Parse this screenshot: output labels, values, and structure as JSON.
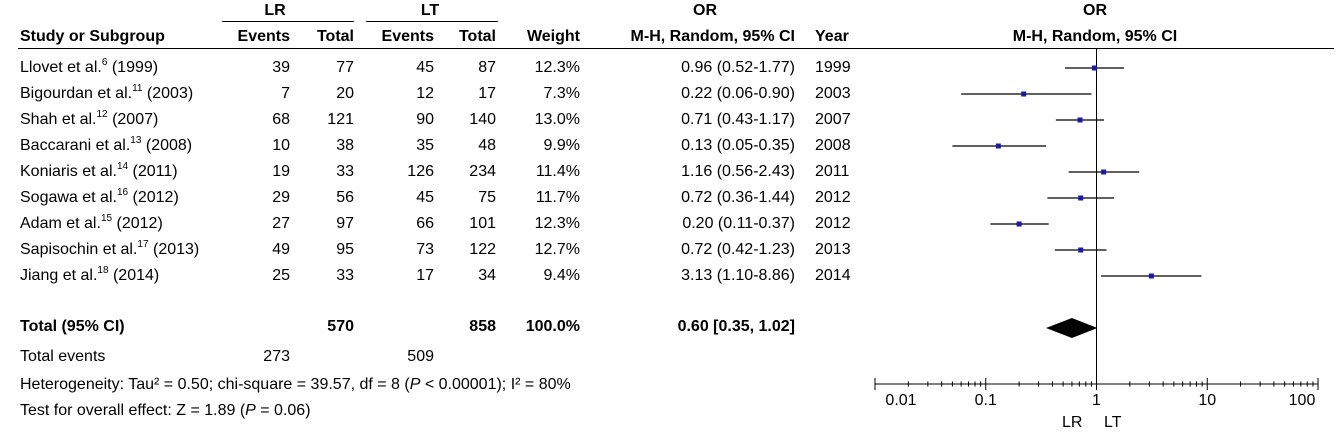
{
  "header": {
    "group1": "LR",
    "group2": "LT",
    "or_table": "OR",
    "or_plot": "OR",
    "col_study": "Study or Subgroup",
    "col_events1": "Events",
    "col_total1": "Total",
    "col_events2": "Events",
    "col_total2": "Total",
    "col_weight": "Weight",
    "col_method": "M-H, Random, 95% CI",
    "col_year": "Year",
    "plot_method": "M-H, Random, 95% CI"
  },
  "studies": [
    {
      "name": "Llovet et al.",
      "ref": "6",
      "yr": "(1999)",
      "lr_events": "39",
      "lr_total": "77",
      "lt_events": "45",
      "lt_total": "87",
      "weight": "12.3%",
      "or_ci": "0.96 (0.52-1.77)",
      "year": "1999"
    },
    {
      "name": "Bigourdan et al.",
      "ref": "11",
      "yr": "(2003)",
      "lr_events": "7",
      "lr_total": "20",
      "lt_events": "12",
      "lt_total": "17",
      "weight": "7.3%",
      "or_ci": "0.22 (0.06-0.90)",
      "year": "2003"
    },
    {
      "name": "Shah et al.",
      "ref": "12",
      "yr": "(2007)",
      "lr_events": "68",
      "lr_total": "121",
      "lt_events": "90",
      "lt_total": "140",
      "weight": "13.0%",
      "or_ci": "0.71 (0.43-1.17)",
      "year": "2007"
    },
    {
      "name": "Baccarani et al.",
      "ref": "13",
      "yr": "(2008)",
      "lr_events": "10",
      "lr_total": "38",
      "lt_events": "35",
      "lt_total": "48",
      "weight": "9.9%",
      "or_ci": "0.13 (0.05-0.35)",
      "year": "2008"
    },
    {
      "name": "Koniaris et al.",
      "ref": "14",
      "yr": "(2011)",
      "lr_events": "19",
      "lr_total": "33",
      "lt_events": "126",
      "lt_total": "234",
      "weight": "11.4%",
      "or_ci": "1.16 (0.56-2.43)",
      "year": "2011"
    },
    {
      "name": "Sogawa et al.",
      "ref": "16",
      "yr": "(2012)",
      "lr_events": "29",
      "lr_total": "56",
      "lt_events": "45",
      "lt_total": "75",
      "weight": "11.7%",
      "or_ci": "0.72 (0.36-1.44)",
      "year": "2012"
    },
    {
      "name": "Adam et al.",
      "ref": "15",
      "yr": "(2012)",
      "lr_events": "27",
      "lr_total": "97",
      "lt_events": "66",
      "lt_total": "101",
      "weight": "12.3%",
      "or_ci": "0.20 (0.11-0.37)",
      "year": "2012"
    },
    {
      "name": "Sapisochin et al.",
      "ref": "17",
      "yr": "(2013)",
      "lr_events": "49",
      "lr_total": "95",
      "lt_events": "73",
      "lt_total": "122",
      "weight": "12.7%",
      "or_ci": "0.72 (0.42-1.23)",
      "year": "2013"
    },
    {
      "name": "Jiang et al.",
      "ref": "18",
      "yr": "(2014)",
      "lr_events": "25",
      "lr_total": "33",
      "lt_events": "17",
      "lt_total": "34",
      "weight": "9.4%",
      "or_ci": "3.13 (1.10-8.86)",
      "year": "2014"
    }
  ],
  "total": {
    "label": "Total (95% CI)",
    "lr_total": "570",
    "lt_total": "858",
    "weight": "100.0%",
    "or_ci": "0.60 [0.35, 1.02]"
  },
  "events": {
    "label": "Total events",
    "lr": "273",
    "lt": "509"
  },
  "heterogeneity": {
    "prefix": "Heterogeneity: Tau² = 0.50; chi-square = 39.57, df = 8 (",
    "p": "P",
    "p_value": " < 0.00001); I² = 80%"
  },
  "overall": {
    "prefix": "Test for overall effect: Z = 1.89 (",
    "p": "P",
    "p_value": " = 0.06)"
  },
  "chart_data": {
    "type": "forest",
    "scale": "log",
    "xlim": [
      0.01,
      100
    ],
    "ticks": [
      "0.01",
      "0.1",
      "1",
      "10",
      "100"
    ],
    "xlabel_left": "LR",
    "xlabel_right": "LT",
    "points": [
      {
        "or": 0.96,
        "lo": 0.52,
        "hi": 1.77
      },
      {
        "or": 0.22,
        "lo": 0.06,
        "hi": 0.9
      },
      {
        "or": 0.71,
        "lo": 0.43,
        "hi": 1.17
      },
      {
        "or": 0.13,
        "lo": 0.05,
        "hi": 0.35
      },
      {
        "or": 1.16,
        "lo": 0.56,
        "hi": 2.43
      },
      {
        "or": 0.72,
        "lo": 0.36,
        "hi": 1.44
      },
      {
        "or": 0.2,
        "lo": 0.11,
        "hi": 0.37
      },
      {
        "or": 0.72,
        "lo": 0.42,
        "hi": 1.23
      },
      {
        "or": 3.13,
        "lo": 1.1,
        "hi": 8.86
      }
    ],
    "pooled": {
      "or": 0.6,
      "lo": 0.35,
      "hi": 1.02
    },
    "marker_color": "#1a1aa6"
  }
}
